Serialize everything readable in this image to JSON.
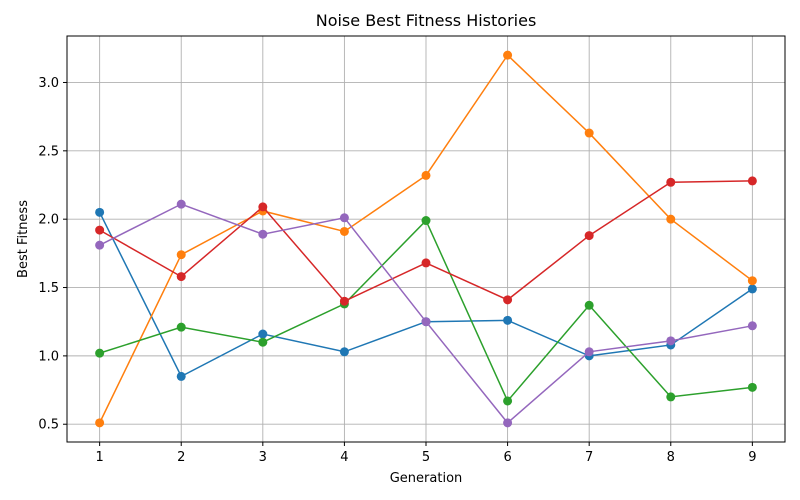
{
  "chart_data": {
    "type": "line",
    "title": "Noise Best Fitness Histories",
    "xlabel": "Generation",
    "ylabel": "Best Fitness",
    "x": [
      1,
      2,
      3,
      4,
      5,
      6,
      7,
      8,
      9
    ],
    "xlim": [
      0.6,
      9.4
    ],
    "ylim": [
      0.37,
      3.34
    ],
    "xticks": [
      1,
      2,
      3,
      4,
      5,
      6,
      7,
      8,
      9
    ],
    "yticks": [
      0.5,
      1.0,
      1.5,
      2.0,
      2.5,
      3.0
    ],
    "ytick_labels": [
      "0.5",
      "1.0",
      "1.5",
      "2.0",
      "2.5",
      "3.0"
    ],
    "grid": true,
    "legend": "none",
    "series": [
      {
        "color": "#1f77b4",
        "values": [
          2.05,
          0.85,
          1.16,
          1.03,
          1.25,
          1.26,
          1.0,
          1.08,
          1.49
        ]
      },
      {
        "color": "#ff7f0e",
        "values": [
          0.51,
          1.74,
          2.06,
          1.91,
          2.32,
          3.2,
          2.63,
          2.0,
          1.55
        ]
      },
      {
        "color": "#2ca02c",
        "values": [
          1.02,
          1.21,
          1.1,
          1.38,
          1.99,
          0.67,
          1.37,
          0.7,
          0.77
        ]
      },
      {
        "color": "#d62728",
        "values": [
          1.92,
          1.58,
          2.09,
          1.4,
          1.68,
          1.41,
          1.88,
          2.27,
          2.28
        ]
      },
      {
        "color": "#9467bd",
        "values": [
          1.81,
          2.11,
          1.89,
          2.01,
          1.25,
          0.51,
          1.03,
          1.11,
          1.22
        ]
      }
    ]
  }
}
